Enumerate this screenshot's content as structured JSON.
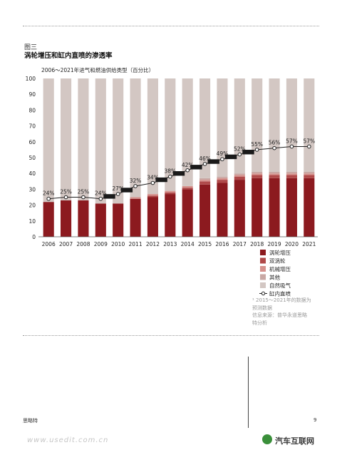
{
  "figure": {
    "number": "图三",
    "title": "涡轮增压和缸内直喷的渗透率",
    "subtitle": "2006～2021年进气和燃油供给类型（百分比）"
  },
  "note": {
    "line1": "¹ 2015～2021年的数据为",
    "line2": "预测数据",
    "line3": "信息来源：普华永道思略",
    "line4": "特分析"
  },
  "footer": {
    "brand": "思略特",
    "page": "9"
  },
  "watermark": {
    "left": "www.usedit.com.cn",
    "right": "汽车互联网"
  },
  "colors": {
    "turbo": "#8c1a1f",
    "twin_turbo": "#b04a4a",
    "mechanical": "#d6928d",
    "other": "#c9a8a4",
    "natural": "#d3c7c3",
    "line": "#222222"
  },
  "chart_data": {
    "type": "bar",
    "stacked": true,
    "categories": [
      "2006",
      "2007",
      "2008",
      "2009",
      "2010",
      "2011",
      "2012",
      "2013",
      "2014",
      "2015",
      "2016",
      "2017",
      "2018",
      "2019",
      "2020",
      "2021"
    ],
    "ylim": [
      0,
      100
    ],
    "yticks": [
      "0",
      "10",
      "20",
      "30",
      "40",
      "50",
      "60",
      "70",
      "80",
      "90",
      "100"
    ],
    "series": [
      {
        "name": "涡轮增压",
        "color_key": "turbo",
        "values": [
          22,
          23,
          23,
          21,
          21,
          24,
          25,
          27,
          30,
          33,
          34,
          36,
          37,
          37,
          37,
          37
        ]
      },
      {
        "name": "双涡轮",
        "color_key": "twin_turbo",
        "values": [
          0,
          0,
          0,
          0,
          0,
          0,
          1,
          1,
          1,
          2,
          2,
          2,
          2,
          2,
          2,
          2
        ]
      },
      {
        "name": "机械增压",
        "color_key": "mechanical",
        "values": [
          0,
          0,
          0,
          0,
          0,
          1,
          1,
          1,
          1,
          1,
          1,
          1,
          1,
          1,
          1,
          1
        ]
      },
      {
        "name": "其他",
        "color_key": "other",
        "values": [
          0,
          0,
          0,
          0,
          0,
          0,
          0,
          0,
          0,
          1,
          1,
          1,
          1,
          1,
          1,
          1
        ]
      },
      {
        "name": "自然吸气",
        "color_key": "natural",
        "values": [
          78,
          77,
          77,
          79,
          79,
          75,
          73,
          71,
          68,
          63,
          62,
          60,
          59,
          59,
          59,
          59
        ]
      }
    ],
    "line": {
      "name": "缸内直喷",
      "values": [
        24,
        25,
        25,
        24,
        27,
        32,
        34,
        38,
        42,
        46,
        49,
        52,
        55,
        56,
        57,
        57
      ],
      "labels": [
        "24%",
        "25%",
        "25%",
        "24%",
        "27%",
        "32%",
        "34%",
        "38%",
        "42%",
        "46%",
        "49%",
        "52%",
        "55%",
        "56%",
        "57%",
        "57%"
      ]
    },
    "legend_position": "bottom-right"
  }
}
